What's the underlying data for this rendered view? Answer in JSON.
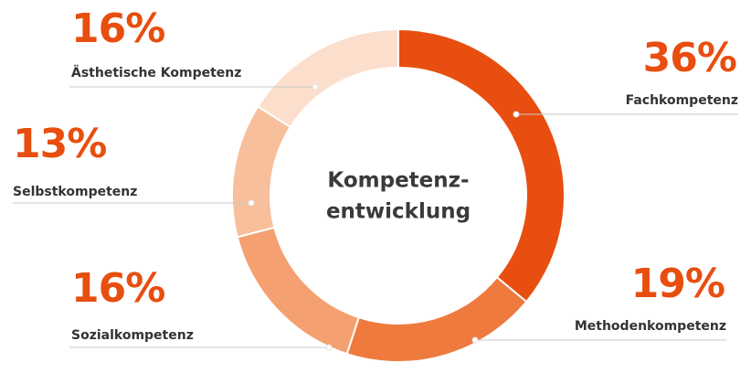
{
  "chart_data": {
    "type": "donut",
    "center_label": [
      "Kompetenz-",
      "entwicklung"
    ],
    "categories": [
      "Fachkompetenz",
      "Methodenkompetenz",
      "Sozialkompetenz",
      "Selbstkompetenz",
      "Ästhetische Kompetenz"
    ],
    "values": [
      36,
      19,
      16,
      13,
      16
    ],
    "value_labels": [
      "36%",
      "19%",
      "16%",
      "13%",
      "16%"
    ],
    "colors": [
      "#e84e0f",
      "#ef7a3e",
      "#f4a070",
      "#f7bf9b",
      "#fbdfcc"
    ]
  }
}
